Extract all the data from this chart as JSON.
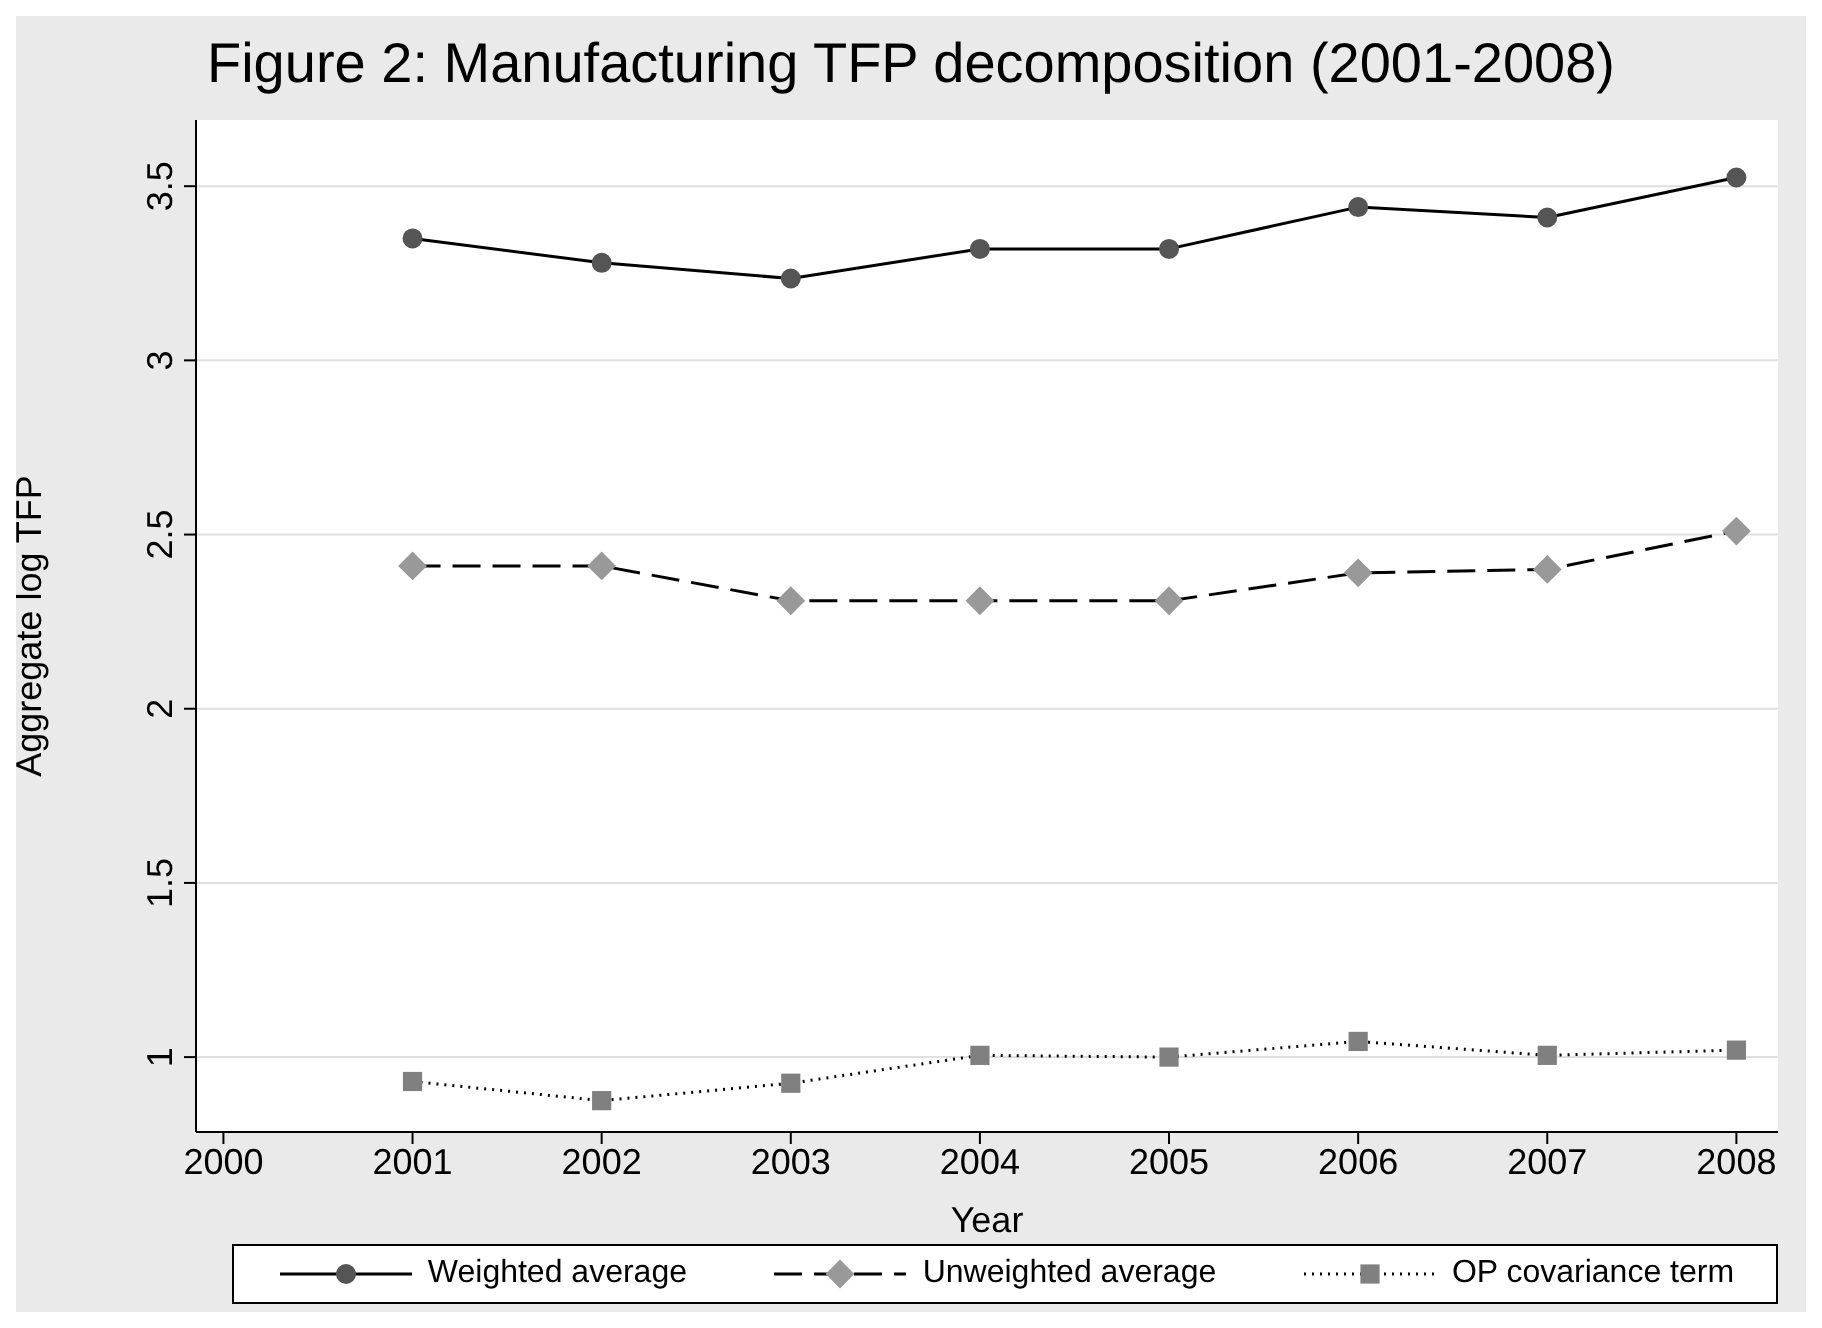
{
  "chart_data": {
    "type": "line",
    "title": "Figure 2: Manufacturing TFP decomposition (2001-2008)",
    "xlabel": "Year",
    "ylabel": "Aggregate log TFP",
    "x": [
      2001,
      2002,
      2003,
      2004,
      2005,
      2006,
      2007,
      2008
    ],
    "series": [
      {
        "name": "Weighted average",
        "color": "#000000",
        "colors": [
          "#555555",
          "#555555",
          "#555555",
          "#555555",
          "#555555",
          "#555555",
          "#555555",
          "#555555"
        ],
        "marker": "circle",
        "line_style": "solid",
        "values": [
          3.35,
          3.28,
          3.235,
          3.32,
          3.32,
          3.44,
          3.41,
          3.525
        ]
      },
      {
        "name": "Unweighted average",
        "color": "#000000",
        "colors": [
          "#999999",
          "#999999",
          "#999999",
          "#999999",
          "#999999",
          "#999999",
          "#999999",
          "#999999"
        ],
        "marker": "diamond",
        "line_style": "dashed",
        "values": [
          2.41,
          2.41,
          2.31,
          2.31,
          2.31,
          2.39,
          2.4,
          2.51
        ]
      },
      {
        "name": "OP covariance term",
        "color": "#000000",
        "colors": [
          "#808080",
          "#808080",
          "#808080",
          "#808080",
          "#808080",
          "#808080",
          "#808080",
          "#808080"
        ],
        "marker": "square",
        "line_style": "dotted",
        "values": [
          0.93,
          0.875,
          0.925,
          1.005,
          1.0,
          1.045,
          1.005,
          1.02
        ]
      }
    ],
    "xlim": [
      1999.855,
      2008.22
    ],
    "xticks": [
      2000,
      2001,
      2002,
      2003,
      2004,
      2005,
      2006,
      2007,
      2008
    ],
    "ylim": [
      0.785,
      3.69
    ],
    "yticks": [
      1,
      1.5,
      2,
      2.5,
      3,
      3.5
    ],
    "grid": "y",
    "legend": "bottom"
  }
}
